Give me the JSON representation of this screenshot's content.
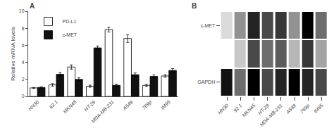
{
  "chart_data": [
    {
      "type": "bar",
      "title": "A",
      "categories": [
        "HN30",
        "92.1",
        "MKN45",
        "HT-29",
        "MDA-MB-231",
        "A549",
        "769p",
        "IM95"
      ],
      "series": [
        {
          "name": "PD-L1",
          "color": "#ffffff",
          "values": [
            1.0,
            1.35,
            3.45,
            1.2,
            7.85,
            6.8,
            1.3,
            2.4
          ],
          "errors": [
            0.05,
            0.15,
            0.25,
            0.12,
            0.28,
            0.45,
            0.12,
            0.15
          ]
        },
        {
          "name": "c-MET",
          "color": "#111111",
          "values": [
            1.05,
            2.6,
            2.0,
            5.7,
            1.3,
            2.55,
            2.35,
            3.05
          ],
          "errors": [
            0.08,
            0.2,
            0.18,
            0.22,
            0.15,
            0.2,
            0.18,
            0.22
          ]
        }
      ],
      "ylabel": "Relative mRNA levels",
      "ylim": [
        0,
        10
      ],
      "yticks": [
        0,
        2,
        4,
        6,
        8,
        10
      ],
      "grid": false,
      "legend": "upper left"
    },
    {
      "type": "heatmap",
      "title": "B",
      "categories": [
        "HN30",
        "92.1",
        "MKN45",
        "HT-29",
        "MDA-MB-231",
        "A549",
        "769p",
        "IM95"
      ],
      "rows": [
        "c-MET",
        null,
        "GAPDH"
      ],
      "cells": [
        [
          0.25,
          0.45,
          0.75,
          0.65,
          0.7,
          0.45,
          0.85,
          0.55
        ],
        [
          0.15,
          0.3,
          0.65,
          0.55,
          0.6,
          0.35,
          0.7,
          0.4
        ],
        [
          0.8,
          0.55,
          0.85,
          0.65,
          0.75,
          0.85,
          0.75,
          0.65
        ]
      ]
    }
  ]
}
